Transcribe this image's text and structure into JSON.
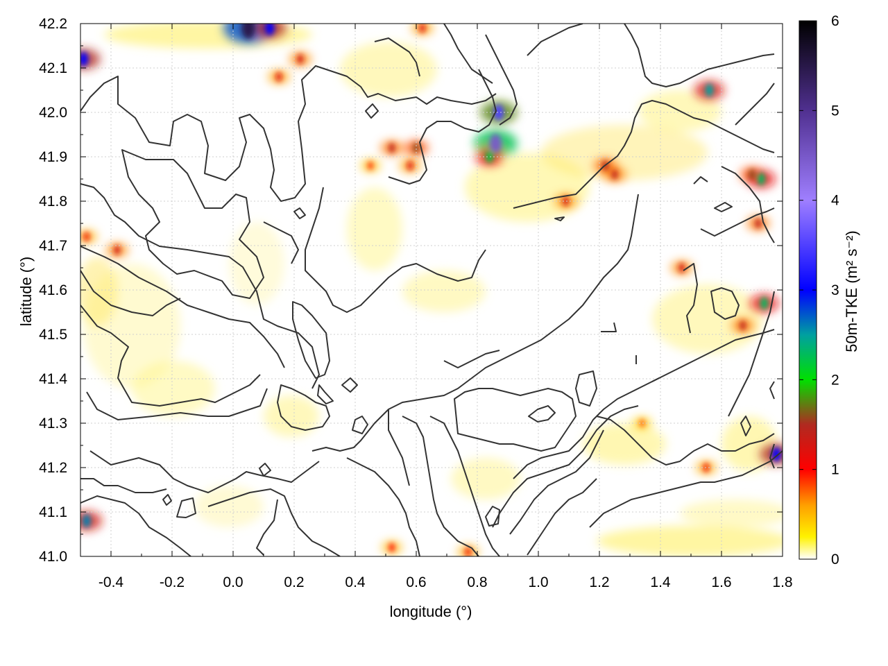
{
  "chart_data": {
    "type": "heatmap",
    "title": "",
    "xlabel": "longitude (°)",
    "ylabel": "latitude (°)",
    "xlim": [
      -0.5,
      1.8
    ],
    "ylim": [
      41.0,
      42.2
    ],
    "x_ticks": [
      "-0.4",
      "-0.2",
      "0.0",
      "0.2",
      "0.4",
      "0.6",
      "0.8",
      "1.0",
      "1.2",
      "1.4",
      "1.6",
      "1.8"
    ],
    "x_tick_values": [
      -0.4,
      -0.2,
      0.0,
      0.2,
      0.4,
      0.6,
      0.8,
      1.0,
      1.2,
      1.4,
      1.6,
      1.8
    ],
    "y_ticks": [
      "41.0",
      "41.1",
      "41.2",
      "41.3",
      "41.4",
      "41.5",
      "41.6",
      "41.7",
      "41.8",
      "41.9",
      "42.0",
      "42.1",
      "42.2"
    ],
    "y_tick_values": [
      41.0,
      41.1,
      41.2,
      41.3,
      41.4,
      41.5,
      41.6,
      41.7,
      41.8,
      41.9,
      42.0,
      42.1,
      42.2
    ],
    "grid": true,
    "colorbar": {
      "label": "50m-TKE (m² s⁻²)",
      "range": [
        0,
        6
      ],
      "ticks": [
        "0",
        "1",
        "2",
        "3",
        "4",
        "5",
        "6"
      ],
      "tick_values": [
        0,
        1,
        2,
        3,
        4,
        5,
        6
      ],
      "stops": [
        {
          "value": 0.0,
          "color": "#ffffff"
        },
        {
          "value": 0.25,
          "color": "#fff200"
        },
        {
          "value": 0.6,
          "color": "#ffa000"
        },
        {
          "value": 1.0,
          "color": "#ff0000"
        },
        {
          "value": 1.5,
          "color": "#b02a20"
        },
        {
          "value": 2.0,
          "color": "#00e000"
        },
        {
          "value": 2.5,
          "color": "#00a0a0"
        },
        {
          "value": 3.0,
          "color": "#0000ff"
        },
        {
          "value": 4.0,
          "color": "#9f7fff"
        },
        {
          "value": 5.0,
          "color": "#503090"
        },
        {
          "value": 6.0,
          "color": "#000000"
        }
      ]
    },
    "hotspots": [
      {
        "lon": 0.86,
        "lat": 41.93,
        "tke": 4.5
      },
      {
        "lon": 0.87,
        "lat": 42.0,
        "tke": 3.5
      },
      {
        "lon": 0.84,
        "lat": 41.9,
        "tke": 2.2
      },
      {
        "lon": 1.56,
        "lat": 42.05,
        "tke": 2.5
      },
      {
        "lon": 1.7,
        "lat": 41.86,
        "tke": 1.6
      },
      {
        "lon": 1.73,
        "lat": 41.85,
        "tke": 2.3
      },
      {
        "lon": 1.22,
        "lat": 41.88,
        "tke": 1.5
      },
      {
        "lon": 1.25,
        "lat": 41.86,
        "tke": 1.4
      },
      {
        "lon": 1.09,
        "lat": 41.8,
        "tke": 1.3
      },
      {
        "lon": 1.74,
        "lat": 41.57,
        "tke": 2.3
      },
      {
        "lon": 1.72,
        "lat": 41.75,
        "tke": 1.4
      },
      {
        "lon": 0.05,
        "lat": 42.19,
        "tke": 5.5
      },
      {
        "lon": 0.12,
        "lat": 42.19,
        "tke": 3.0
      },
      {
        "lon": 0.22,
        "lat": 42.12,
        "tke": 1.3
      },
      {
        "lon": 0.15,
        "lat": 42.08,
        "tke": 1.2
      },
      {
        "lon": 0.6,
        "lat": 41.92,
        "tke": 1.6
      },
      {
        "lon": 0.52,
        "lat": 41.92,
        "tke": 1.4
      },
      {
        "lon": 0.58,
        "lat": 41.88,
        "tke": 1.2
      },
      {
        "lon": 1.47,
        "lat": 41.65,
        "tke": 1.3
      },
      {
        "lon": 1.67,
        "lat": 41.52,
        "tke": 1.4
      },
      {
        "lon": -0.49,
        "lat": 42.12,
        "tke": 3.0
      },
      {
        "lon": -0.48,
        "lat": 41.08,
        "tke": 2.6
      },
      {
        "lon": -0.48,
        "lat": 41.72,
        "tke": 1.1
      },
      {
        "lon": -0.38,
        "lat": 41.69,
        "tke": 1.3
      },
      {
        "lon": 1.78,
        "lat": 41.23,
        "tke": 3.0
      },
      {
        "lon": 0.77,
        "lat": 41.01,
        "tke": 1.1
      },
      {
        "lon": 0.52,
        "lat": 41.02,
        "tke": 1.0
      },
      {
        "lon": 1.55,
        "lat": 41.2,
        "tke": 1.1
      },
      {
        "lon": 1.34,
        "lat": 41.3,
        "tke": 0.8
      },
      {
        "lon": 0.45,
        "lat": 41.88,
        "tke": 0.9
      },
      {
        "lon": 0.62,
        "lat": 42.19,
        "tke": 1.2
      }
    ]
  }
}
